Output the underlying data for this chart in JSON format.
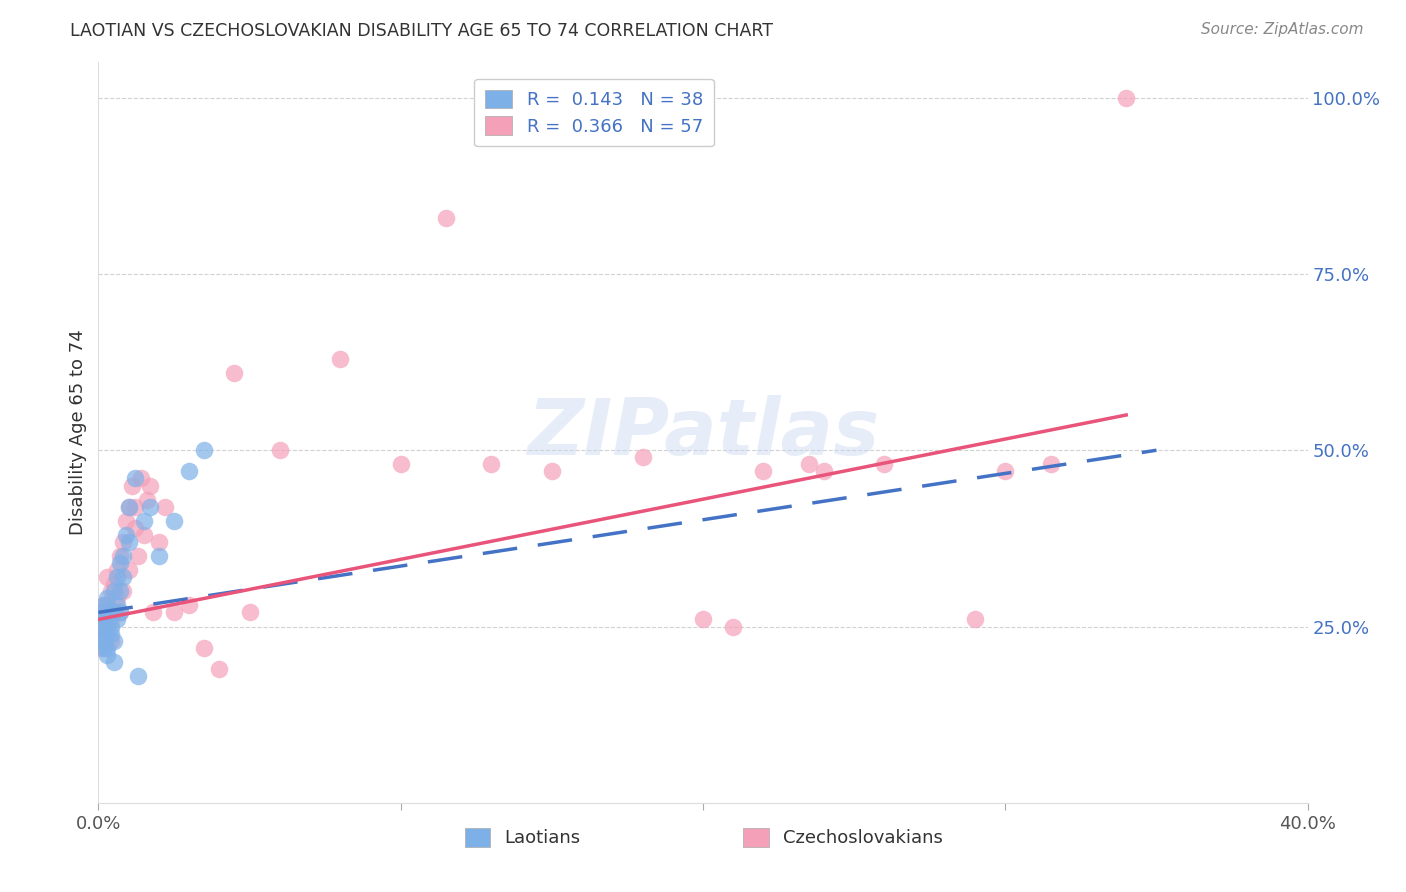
{
  "title": "LAOTIAN VS CZECHOSLOVAKIAN DISABILITY AGE 65 TO 74 CORRELATION CHART",
  "source": "Source: ZipAtlas.com",
  "ylabel": "Disability Age 65 to 74",
  "ylim": [
    0.0,
    1.05
  ],
  "xlim": [
    0.0,
    0.4
  ],
  "yticks": [
    0.0,
    0.25,
    0.5,
    0.75,
    1.0
  ],
  "ytick_labels": [
    "",
    "25.0%",
    "50.0%",
    "75.0%",
    "100.0%"
  ],
  "xticks": [
    0.0,
    0.1,
    0.2,
    0.3,
    0.4
  ],
  "xtick_labels": [
    "0.0%",
    "",
    "",
    "",
    "40.0%"
  ],
  "legend_text1": "R =  0.143   N = 38",
  "legend_text2": "R =  0.366   N = 57",
  "blue_color": "#7EB0E8",
  "pink_color": "#F4A0B8",
  "blue_line_color": "#4472C4",
  "pink_line_color": "#E8547A",
  "watermark": "ZIPatlas",
  "laotian_x": [
    0.001,
    0.001,
    0.001,
    0.002,
    0.002,
    0.002,
    0.002,
    0.003,
    0.003,
    0.003,
    0.003,
    0.003,
    0.004,
    0.004,
    0.004,
    0.005,
    0.005,
    0.005,
    0.005,
    0.006,
    0.006,
    0.006,
    0.007,
    0.007,
    0.007,
    0.008,
    0.008,
    0.009,
    0.01,
    0.01,
    0.012,
    0.013,
    0.015,
    0.017,
    0.02,
    0.025,
    0.03,
    0.035
  ],
  "laotian_y": [
    0.26,
    0.27,
    0.24,
    0.22,
    0.25,
    0.23,
    0.28,
    0.21,
    0.24,
    0.26,
    0.29,
    0.22,
    0.25,
    0.27,
    0.24,
    0.2,
    0.23,
    0.27,
    0.3,
    0.28,
    0.32,
    0.26,
    0.3,
    0.34,
    0.27,
    0.32,
    0.35,
    0.38,
    0.37,
    0.42,
    0.46,
    0.18,
    0.4,
    0.42,
    0.35,
    0.4,
    0.47,
    0.5
  ],
  "czech_x": [
    0.001,
    0.001,
    0.001,
    0.002,
    0.002,
    0.002,
    0.003,
    0.003,
    0.003,
    0.004,
    0.004,
    0.004,
    0.005,
    0.005,
    0.006,
    0.006,
    0.007,
    0.007,
    0.008,
    0.008,
    0.009,
    0.01,
    0.01,
    0.011,
    0.012,
    0.012,
    0.013,
    0.014,
    0.015,
    0.016,
    0.017,
    0.018,
    0.02,
    0.022,
    0.025,
    0.03,
    0.035,
    0.04,
    0.045,
    0.05,
    0.06,
    0.08,
    0.1,
    0.115,
    0.13,
    0.15,
    0.18,
    0.2,
    0.21,
    0.22,
    0.235,
    0.24,
    0.26,
    0.29,
    0.3,
    0.315,
    0.34
  ],
  "czech_y": [
    0.27,
    0.25,
    0.22,
    0.28,
    0.24,
    0.26,
    0.25,
    0.28,
    0.32,
    0.26,
    0.3,
    0.23,
    0.27,
    0.31,
    0.29,
    0.33,
    0.27,
    0.35,
    0.3,
    0.37,
    0.4,
    0.42,
    0.33,
    0.45,
    0.39,
    0.42,
    0.35,
    0.46,
    0.38,
    0.43,
    0.45,
    0.27,
    0.37,
    0.42,
    0.27,
    0.28,
    0.22,
    0.19,
    0.61,
    0.27,
    0.5,
    0.63,
    0.48,
    0.83,
    0.48,
    0.47,
    0.49,
    0.26,
    0.25,
    0.47,
    0.48,
    0.47,
    0.48,
    0.26,
    0.47,
    0.48,
    1.0
  ],
  "blue_line_x": [
    0.0,
    0.35
  ],
  "blue_line_y": [
    0.27,
    0.5
  ],
  "pink_line_x": [
    0.0,
    0.34
  ],
  "pink_line_y": [
    0.26,
    0.55
  ]
}
